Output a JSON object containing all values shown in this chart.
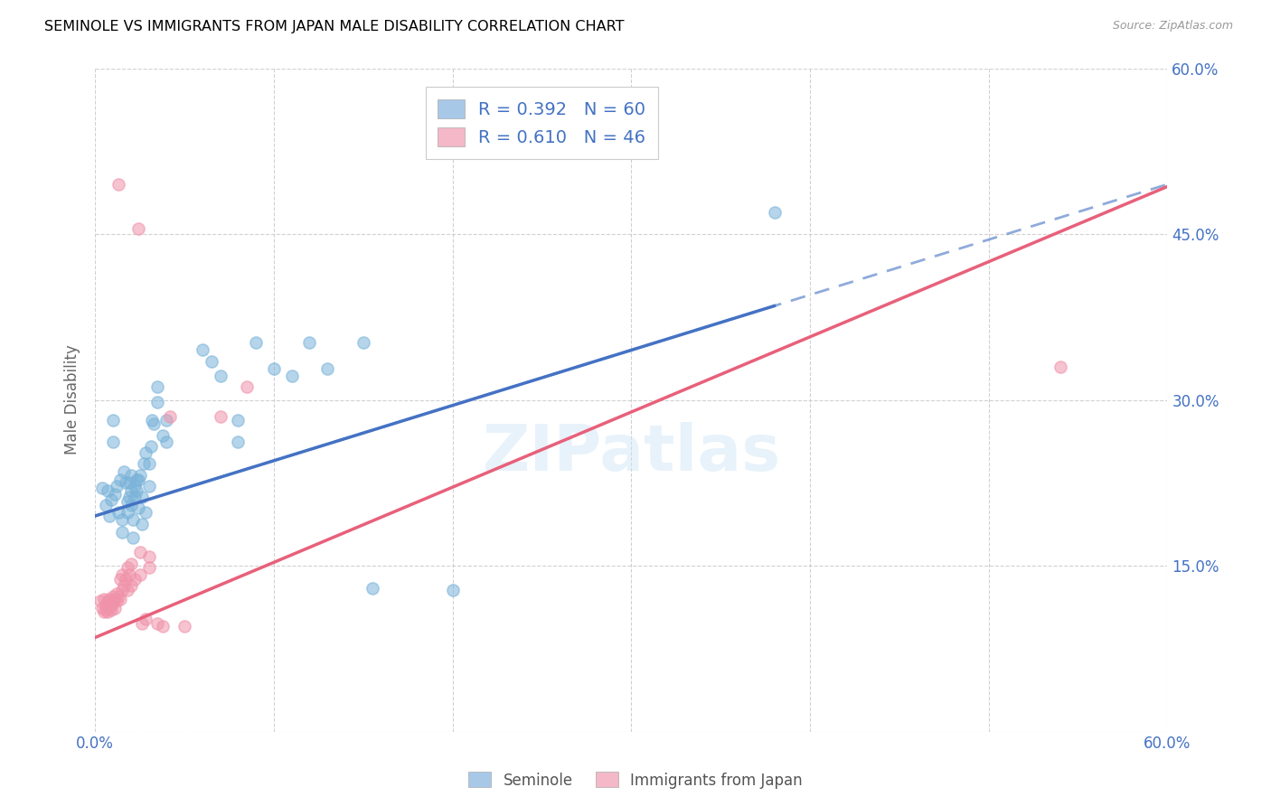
{
  "title": "SEMINOLE VS IMMIGRANTS FROM JAPAN MALE DISABILITY CORRELATION CHART",
  "source": "Source: ZipAtlas.com",
  "ylabel": "Male Disability",
  "xlim": [
    0.0,
    0.6
  ],
  "ylim": [
    0.0,
    0.6
  ],
  "xtick_positions": [
    0.0,
    0.1,
    0.2,
    0.3,
    0.4,
    0.5,
    0.6
  ],
  "xtick_labels": [
    "0.0%",
    "",
    "",
    "",
    "",
    "",
    "60.0%"
  ],
  "ytick_positions": [
    0.0,
    0.15,
    0.3,
    0.45,
    0.6
  ],
  "ytick_labels_right": [
    "",
    "15.0%",
    "30.0%",
    "45.0%",
    "60.0%"
  ],
  "bottom_legend": [
    "Seminole",
    "Immigrants from Japan"
  ],
  "seminole_color": "#7ab3d9",
  "japan_color": "#f093aa",
  "seminole_line_color": "#4472c4",
  "japan_line_color": "#e8607a",
  "seminole_legend_color": "#a8c8e8",
  "japan_legend_color": "#f4b8c8",
  "watermark": "ZIPatlas",
  "seminole_points": [
    [
      0.004,
      0.22
    ],
    [
      0.006,
      0.205
    ],
    [
      0.007,
      0.218
    ],
    [
      0.008,
      0.195
    ],
    [
      0.009,
      0.21
    ],
    [
      0.01,
      0.282
    ],
    [
      0.01,
      0.262
    ],
    [
      0.011,
      0.215
    ],
    [
      0.012,
      0.222
    ],
    [
      0.013,
      0.198
    ],
    [
      0.014,
      0.228
    ],
    [
      0.015,
      0.192
    ],
    [
      0.015,
      0.18
    ],
    [
      0.016,
      0.235
    ],
    [
      0.017,
      0.225
    ],
    [
      0.018,
      0.208
    ],
    [
      0.018,
      0.198
    ],
    [
      0.019,
      0.212
    ],
    [
      0.019,
      0.225
    ],
    [
      0.02,
      0.232
    ],
    [
      0.02,
      0.218
    ],
    [
      0.02,
      0.205
    ],
    [
      0.021,
      0.175
    ],
    [
      0.021,
      0.192
    ],
    [
      0.022,
      0.222
    ],
    [
      0.022,
      0.212
    ],
    [
      0.023,
      0.228
    ],
    [
      0.023,
      0.218
    ],
    [
      0.024,
      0.202
    ],
    [
      0.024,
      0.228
    ],
    [
      0.025,
      0.232
    ],
    [
      0.026,
      0.188
    ],
    [
      0.026,
      0.212
    ],
    [
      0.027,
      0.242
    ],
    [
      0.028,
      0.198
    ],
    [
      0.028,
      0.252
    ],
    [
      0.03,
      0.222
    ],
    [
      0.03,
      0.242
    ],
    [
      0.031,
      0.258
    ],
    [
      0.032,
      0.282
    ],
    [
      0.033,
      0.278
    ],
    [
      0.035,
      0.298
    ],
    [
      0.035,
      0.312
    ],
    [
      0.038,
      0.268
    ],
    [
      0.04,
      0.262
    ],
    [
      0.04,
      0.282
    ],
    [
      0.06,
      0.345
    ],
    [
      0.065,
      0.335
    ],
    [
      0.07,
      0.322
    ],
    [
      0.08,
      0.262
    ],
    [
      0.08,
      0.282
    ],
    [
      0.09,
      0.352
    ],
    [
      0.1,
      0.328
    ],
    [
      0.11,
      0.322
    ],
    [
      0.12,
      0.352
    ],
    [
      0.13,
      0.328
    ],
    [
      0.15,
      0.352
    ],
    [
      0.155,
      0.13
    ],
    [
      0.2,
      0.128
    ],
    [
      0.38,
      0.47
    ]
  ],
  "japan_points": [
    [
      0.003,
      0.118
    ],
    [
      0.004,
      0.112
    ],
    [
      0.005,
      0.12
    ],
    [
      0.005,
      0.108
    ],
    [
      0.006,
      0.115
    ],
    [
      0.006,
      0.11
    ],
    [
      0.007,
      0.118
    ],
    [
      0.007,
      0.108
    ],
    [
      0.008,
      0.12
    ],
    [
      0.008,
      0.112
    ],
    [
      0.009,
      0.115
    ],
    [
      0.009,
      0.11
    ],
    [
      0.01,
      0.122
    ],
    [
      0.01,
      0.118
    ],
    [
      0.011,
      0.12
    ],
    [
      0.011,
      0.112
    ],
    [
      0.012,
      0.125
    ],
    [
      0.012,
      0.118
    ],
    [
      0.013,
      0.495
    ],
    [
      0.013,
      0.122
    ],
    [
      0.014,
      0.12
    ],
    [
      0.014,
      0.138
    ],
    [
      0.015,
      0.128
    ],
    [
      0.015,
      0.142
    ],
    [
      0.016,
      0.132
    ],
    [
      0.017,
      0.138
    ],
    [
      0.018,
      0.148
    ],
    [
      0.018,
      0.128
    ],
    [
      0.019,
      0.142
    ],
    [
      0.02,
      0.132
    ],
    [
      0.02,
      0.152
    ],
    [
      0.022,
      0.138
    ],
    [
      0.024,
      0.455
    ],
    [
      0.025,
      0.162
    ],
    [
      0.025,
      0.142
    ],
    [
      0.026,
      0.098
    ],
    [
      0.028,
      0.102
    ],
    [
      0.03,
      0.158
    ],
    [
      0.03,
      0.148
    ],
    [
      0.035,
      0.098
    ],
    [
      0.038,
      0.095
    ],
    [
      0.042,
      0.285
    ],
    [
      0.05,
      0.095
    ],
    [
      0.07,
      0.285
    ],
    [
      0.085,
      0.312
    ],
    [
      0.54,
      0.33
    ]
  ]
}
